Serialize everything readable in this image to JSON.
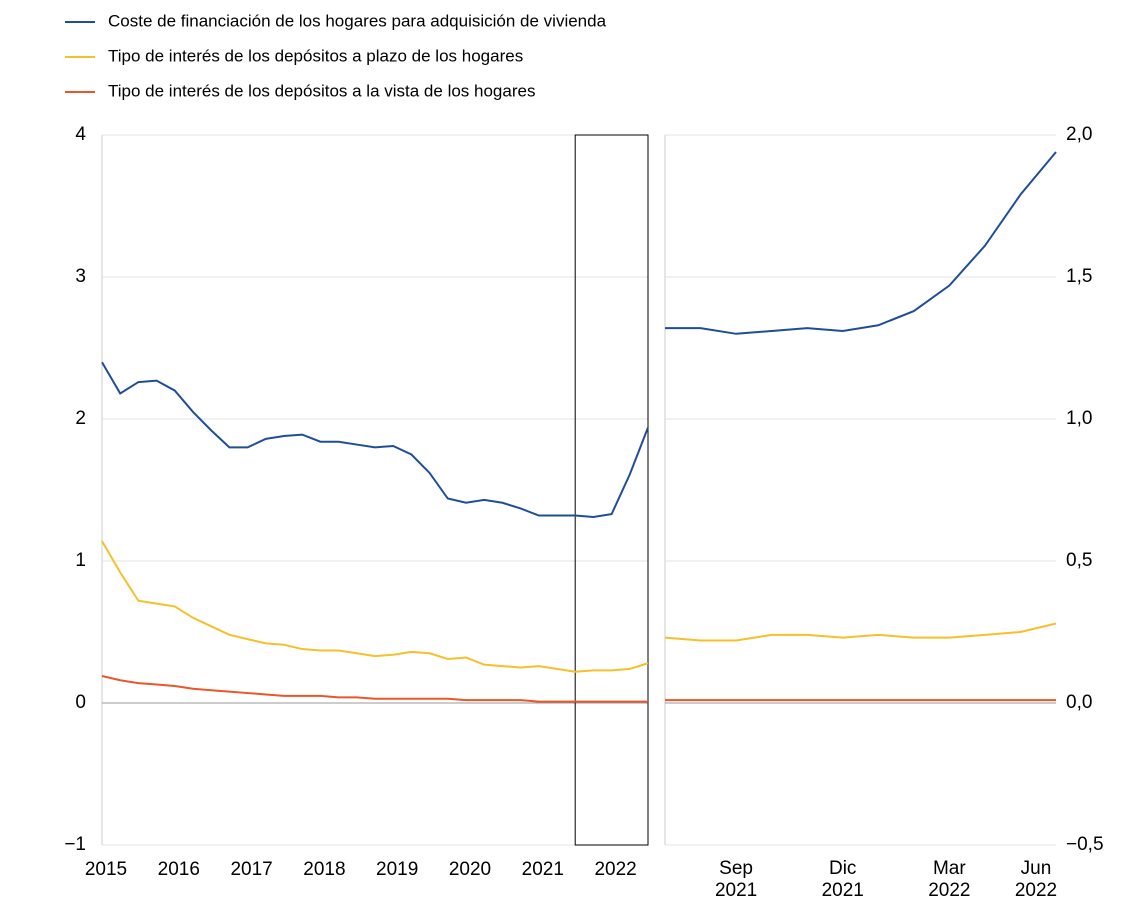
{
  "chart_data": [
    {
      "type": "line",
      "x": [
        2015,
        2015.25,
        2015.5,
        2015.75,
        2016,
        2016.25,
        2016.5,
        2016.75,
        2017,
        2017.25,
        2017.5,
        2017.75,
        2018,
        2018.25,
        2018.5,
        2018.75,
        2019,
        2019.25,
        2019.5,
        2019.75,
        2020,
        2020.25,
        2020.5,
        2020.75,
        2021,
        2021.25,
        2021.5,
        2021.75,
        2022,
        2022.25,
        2022.5
      ],
      "series": [
        {
          "name": "Coste de financiación de los hogares para adquisición de vivienda",
          "color": "#1f4e99",
          "values": [
            2.4,
            2.18,
            2.26,
            2.27,
            2.2,
            2.05,
            1.92,
            1.8,
            1.8,
            1.86,
            1.88,
            1.89,
            1.84,
            1.84,
            1.82,
            1.8,
            1.81,
            1.75,
            1.62,
            1.44,
            1.41,
            1.43,
            1.41,
            1.37,
            1.32,
            1.32,
            1.32,
            1.31,
            1.33,
            1.61,
            1.94
          ]
        },
        {
          "name": "Tipo de interés de los depósitos a plazo de los hogares",
          "color": "#f5c02a",
          "values": [
            1.14,
            0.92,
            0.72,
            0.7,
            0.68,
            0.6,
            0.54,
            0.48,
            0.45,
            0.42,
            0.41,
            0.38,
            0.37,
            0.37,
            0.35,
            0.33,
            0.34,
            0.36,
            0.35,
            0.31,
            0.32,
            0.27,
            0.26,
            0.25,
            0.26,
            0.24,
            0.22,
            0.23,
            0.23,
            0.24,
            0.28
          ]
        },
        {
          "name": "Tipo de interés de los depósitos a la vista de los hogares",
          "color": "#e8562a",
          "values": [
            0.19,
            0.16,
            0.14,
            0.13,
            0.12,
            0.1,
            0.09,
            0.08,
            0.07,
            0.06,
            0.05,
            0.05,
            0.05,
            0.04,
            0.04,
            0.03,
            0.03,
            0.03,
            0.03,
            0.03,
            0.02,
            0.02,
            0.02,
            0.02,
            0.01,
            0.01,
            0.01,
            0.01,
            0.01,
            0.01,
            0.01
          ]
        }
      ],
      "xlim": [
        2015,
        2022.5
      ],
      "xticks": [
        2015,
        2016,
        2017,
        2018,
        2019,
        2020,
        2021,
        2022
      ],
      "ylim": [
        -1,
        4
      ],
      "yticks": [
        {
          "value": -1,
          "label": "−1"
        },
        0,
        1,
        2,
        3,
        4
      ],
      "highlight": [
        2021.5,
        2022.5
      ],
      "grid": true
    },
    {
      "type": "line",
      "categories": [
        null,
        null,
        "Sep 2021",
        null,
        null,
        "Dic 2021",
        null,
        null,
        "Mar 2022",
        null,
        null,
        "Jun 2022"
      ],
      "series": [
        {
          "color": "#1f4e99",
          "axis": "y2",
          "values": [
            1.32,
            1.32,
            1.3,
            1.31,
            1.32,
            1.31,
            1.33,
            1.38,
            1.47,
            1.61,
            1.79,
            1.94
          ]
        },
        {
          "color": "#f5c02a",
          "axis": "y2",
          "values": [
            0.23,
            0.22,
            0.22,
            0.24,
            0.24,
            0.23,
            0.24,
            0.23,
            0.23,
            0.24,
            0.25,
            0.28
          ]
        },
        {
          "color": "#e8562a",
          "axis": "y2",
          "values": [
            0.01,
            0.01,
            0.01,
            0.01,
            0.01,
            0.01,
            0.01,
            0.01,
            0.01,
            0.01,
            0.01,
            0.01
          ]
        }
      ],
      "y2lim": [
        -0.5,
        2.0
      ],
      "y2ticks": [
        {
          "value": -0.5,
          "label": "−0,5"
        },
        {
          "value": 0,
          "label": "0,0"
        },
        {
          "value": 0.5,
          "label": "0,5"
        },
        {
          "value": 1.0,
          "label": "1,0"
        },
        {
          "value": 1.5,
          "label": "1,5"
        },
        {
          "value": 2.0,
          "label": "2,0"
        }
      ],
      "grid": true
    }
  ]
}
